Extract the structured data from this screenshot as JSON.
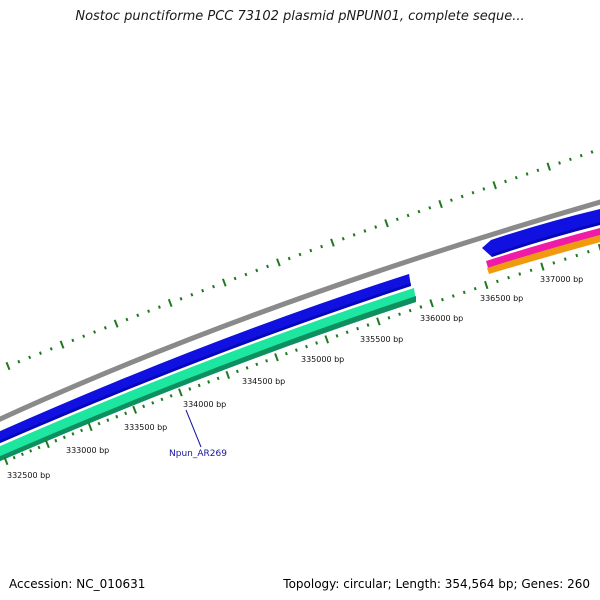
{
  "title": "Nostoc punctiforme PCC 73102 plasmid pNPUN01, complete seque...",
  "ticks": {
    "labels": [
      "332500 bp",
      "333000 bp",
      "333500 bp",
      "334000 bp",
      "334500 bp",
      "335000 bp",
      "335500 bp",
      "336000 bp",
      "336500 bp",
      "337000 bp"
    ]
  },
  "features": {
    "gene_label": "Npun_AR269"
  },
  "colors": {
    "backbone": "#8a8a8a",
    "cds_forward": "#1010e0",
    "cds_forward_dark": "#00009a",
    "gene_teal": "#1de6a0",
    "gene_teal_dark": "#0f8f60",
    "magenta": "#f01aa8",
    "orange": "#f09a10",
    "tick": "#1f7a1f",
    "label_blue": "#1616a0"
  },
  "footer": {
    "accession": "Accession: NC_010631",
    "summary": "Topology: circular; Length: 354,564 bp; Genes: 260"
  }
}
